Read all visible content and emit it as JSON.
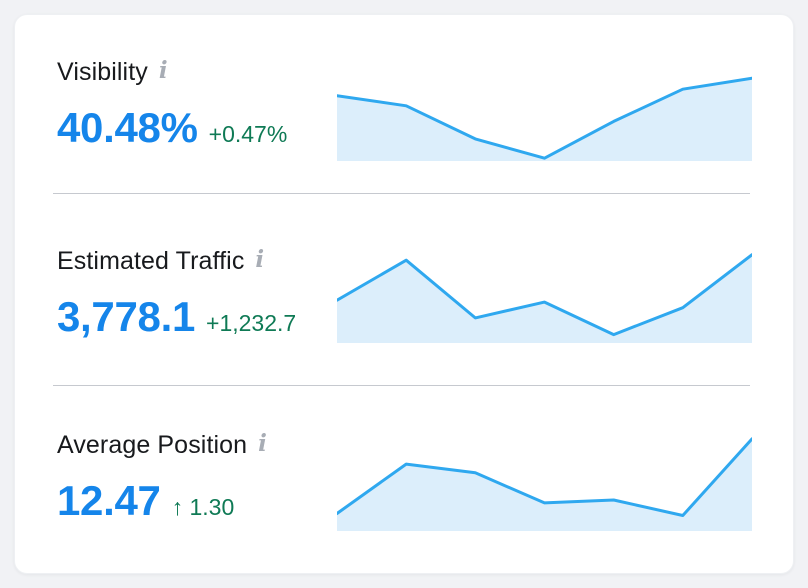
{
  "colors": {
    "page_background": "#f1f2f5",
    "card_background": "#ffffff",
    "value_blue": "#1585ea",
    "delta_green": "#0f7a55",
    "chart_line": "#2fa8ef",
    "chart_fill": "#dceefb",
    "divider": "#c6c9cf",
    "label_text": "#181a1d",
    "info_icon": "#a8adb5"
  },
  "icons": {
    "info_glyph": "i"
  },
  "metrics": [
    {
      "id": "visibility",
      "label": "Visibility",
      "value": "40.48%",
      "delta": "+0.47%",
      "delta_direction": "up",
      "sparkline": [
        71,
        60,
        24,
        3,
        43,
        78,
        90
      ]
    },
    {
      "id": "estimated-traffic",
      "label": "Estimated Traffic",
      "value": "3,778.1",
      "delta": "+1,232.7",
      "delta_direction": "up",
      "sparkline": [
        46,
        89,
        27,
        44,
        9,
        38,
        95
      ]
    },
    {
      "id": "average-position",
      "label": "Average Position",
      "value": "12.47",
      "delta": "↑ 1.30",
      "delta_direction": "up",
      "sparkline": [
        18,
        69,
        60,
        29,
        32,
        16,
        95
      ]
    }
  ],
  "chart_data": [
    {
      "type": "area",
      "title": "Visibility",
      "current_value": "40.48%",
      "change": "+0.47%",
      "x": [
        1,
        2,
        3,
        4,
        5,
        6,
        7
      ],
      "values_normalized_0to100": [
        71,
        60,
        24,
        3,
        43,
        78,
        90
      ],
      "xlabel": "",
      "ylabel": "",
      "axes_visible": false,
      "grid": false,
      "legend": "none",
      "line_color": "#2fa8ef",
      "fill_color": "#dceefb"
    },
    {
      "type": "area",
      "title": "Estimated Traffic",
      "current_value": "3,778.1",
      "change": "+1,232.7",
      "x": [
        1,
        2,
        3,
        4,
        5,
        6,
        7
      ],
      "values_normalized_0to100": [
        46,
        89,
        27,
        44,
        9,
        38,
        95
      ],
      "xlabel": "",
      "ylabel": "",
      "axes_visible": false,
      "grid": false,
      "legend": "none",
      "line_color": "#2fa8ef",
      "fill_color": "#dceefb"
    },
    {
      "type": "area",
      "title": "Average Position",
      "current_value": "12.47",
      "change": "↑ 1.30",
      "x": [
        1,
        2,
        3,
        4,
        5,
        6,
        7
      ],
      "values_normalized_0to100": [
        18,
        69,
        60,
        29,
        32,
        16,
        95
      ],
      "xlabel": "",
      "ylabel": "",
      "axes_visible": false,
      "grid": false,
      "legend": "none",
      "line_color": "#2fa8ef",
      "fill_color": "#dceefb"
    }
  ]
}
